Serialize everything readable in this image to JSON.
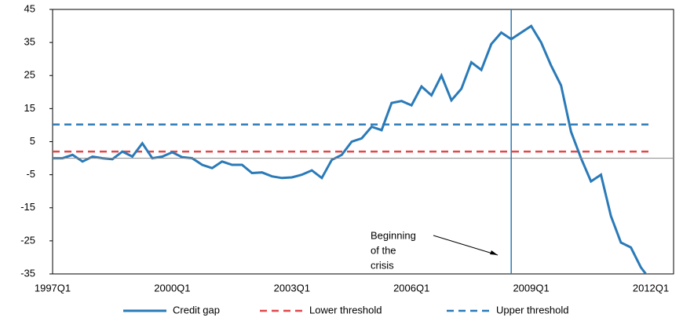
{
  "chart_data": {
    "type": "line",
    "categories": [
      "1997Q1",
      null,
      null,
      null,
      null,
      null,
      null,
      null,
      null,
      null,
      null,
      null,
      "2000Q1",
      null,
      null,
      null,
      null,
      null,
      null,
      null,
      null,
      null,
      null,
      null,
      "2003Q1",
      null,
      null,
      null,
      null,
      null,
      null,
      null,
      null,
      null,
      null,
      null,
      "2006Q1",
      null,
      null,
      null,
      null,
      null,
      null,
      null,
      null,
      null,
      null,
      null,
      "2009Q1",
      null,
      null,
      null,
      null,
      null,
      null,
      null,
      null,
      null,
      null,
      null,
      "2012Q1"
    ],
    "series": [
      {
        "name": "Credit gap",
        "color": "#2a7ab8",
        "dash": false,
        "values": [
          0,
          0,
          1,
          -1,
          0.5,
          0,
          -0.3,
          2,
          0.5,
          4.5,
          0,
          0.5,
          1.8,
          0.3,
          0,
          -2,
          -3,
          -1,
          -2,
          -2,
          -4.5,
          -4.3,
          -5.5,
          -6,
          -5.8,
          -5,
          -3.7,
          -6,
          -0.5,
          1,
          5,
          6,
          9.5,
          8.5,
          16.7,
          17.3,
          16,
          21.7,
          19,
          25,
          17.5,
          21,
          29,
          26.7,
          34.5,
          38,
          36,
          38,
          40,
          35,
          28,
          22,
          8,
          0,
          -7,
          -5,
          -17.5,
          -25.5,
          -27,
          -33,
          -37
        ]
      },
      {
        "name": "Lower threshold",
        "color": "#e0484b",
        "dash": true,
        "values": [
          2,
          2,
          2,
          2,
          2,
          2,
          2,
          2,
          2,
          2,
          2,
          2,
          2,
          2,
          2,
          2,
          2,
          2,
          2,
          2,
          2,
          2,
          2,
          2,
          2,
          2,
          2,
          2,
          2,
          2,
          2,
          2,
          2,
          2,
          2,
          2,
          2,
          2,
          2,
          2,
          2,
          2,
          2,
          2,
          2,
          2,
          2,
          2,
          2,
          2,
          2,
          2,
          2,
          2,
          2,
          2,
          2,
          2,
          2,
          2,
          2
        ]
      },
      {
        "name": "Upper threshold",
        "color": "#2a7ab8",
        "dash": true,
        "values": [
          10.2,
          10.2,
          10.2,
          10.2,
          10.2,
          10.2,
          10.2,
          10.2,
          10.2,
          10.2,
          10.2,
          10.2,
          10.2,
          10.2,
          10.2,
          10.2,
          10.2,
          10.2,
          10.2,
          10.2,
          10.2,
          10.2,
          10.2,
          10.2,
          10.2,
          10.2,
          10.2,
          10.2,
          10.2,
          10.2,
          10.2,
          10.2,
          10.2,
          10.2,
          10.2,
          10.2,
          10.2,
          10.2,
          10.2,
          10.2,
          10.2,
          10.2,
          10.2,
          10.2,
          10.2,
          10.2,
          10.2,
          10.2,
          10.2,
          10.2,
          10.2,
          10.2,
          10.2,
          10.2,
          10.2,
          10.2,
          10.2,
          10.2,
          10.2,
          10.2,
          10.2
        ]
      }
    ],
    "ylim": [
      -35,
      45
    ],
    "yticks": [
      -35,
      -25,
      -15,
      -5,
      5,
      15,
      25,
      35,
      45
    ],
    "vertical_line_index": 46,
    "annotation": [
      "Beginning",
      "of the",
      "crisis"
    ],
    "legend": "bottom"
  }
}
